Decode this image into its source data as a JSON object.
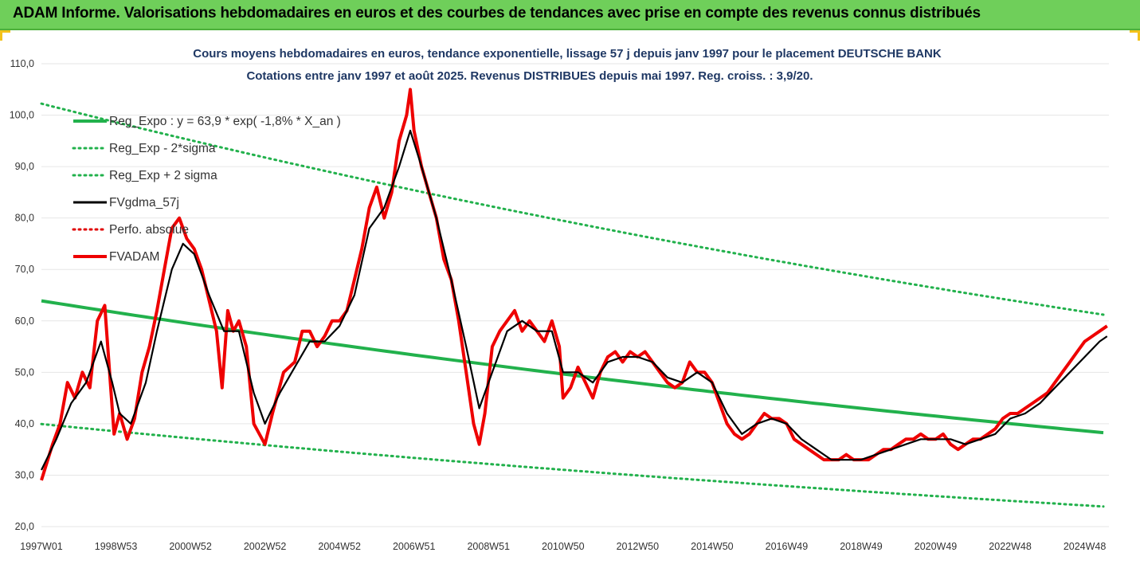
{
  "banner": {
    "title": "ADAM Informe. Valorisations hebdomadaires en euros et des courbes de tendances avec prise en compte des revenus connus distribués"
  },
  "chart_data": {
    "type": "line",
    "title_line1": "Cours moyens hebdomadaires en euros, tendance exponentielle, lissage 57 j depuis janv 1997 pour le placement DEUTSCHE BANK",
    "title_line2": "Cotations entre janv 1997 et août 2025. Revenus DISTRIBUES depuis mai 1997. Reg. croiss. : 3,9/20.",
    "ylim": [
      20,
      110
    ],
    "y_ticks": [
      "20,0",
      "30,0",
      "40,0",
      "50,0",
      "60,0",
      "70,0",
      "80,0",
      "90,0",
      "100,0",
      "110,0"
    ],
    "x_range": [
      1997.0,
      2025.65
    ],
    "x_ticks": [
      {
        "label": "1997W01",
        "year": 1997.0
      },
      {
        "label": "1998W53",
        "year": 1999.0
      },
      {
        "label": "2000W52",
        "year": 2001.0
      },
      {
        "label": "2002W52",
        "year": 2003.0
      },
      {
        "label": "2004W52",
        "year": 2005.0
      },
      {
        "label": "2006W51",
        "year": 2007.0
      },
      {
        "label": "2008W51",
        "year": 2009.0
      },
      {
        "label": "2010W50",
        "year": 2011.0
      },
      {
        "label": "2012W50",
        "year": 2013.0
      },
      {
        "label": "2014W50",
        "year": 2015.0
      },
      {
        "label": "2016W49",
        "year": 2017.0
      },
      {
        "label": "2018W49",
        "year": 2019.0
      },
      {
        "label": "2020W49",
        "year": 2021.0
      },
      {
        "label": "2022W48",
        "year": 2023.0
      },
      {
        "label": "2024W48",
        "year": 2025.0
      }
    ],
    "legend": [
      {
        "label": "Reg_Expo : y = 63,9 * exp( -1,8% *  X_an )",
        "color": "#22b14c",
        "style": "solid",
        "width": 4
      },
      {
        "label": "Reg_Exp - 2*sigma",
        "color": "#22b14c",
        "style": "dotted",
        "width": 3
      },
      {
        "label": "Reg_Exp + 2 sigma",
        "color": "#22b14c",
        "style": "dotted",
        "width": 3
      },
      {
        "label": "FVgdma_57j",
        "color": "#000000",
        "style": "solid",
        "width": 3
      },
      {
        "label": "Perfo. absolue",
        "color": "#e00000",
        "style": "dotted",
        "width": 3
      },
      {
        "label": "FVADAM",
        "color": "#ee0000",
        "style": "solid",
        "width": 4
      }
    ],
    "regression": {
      "a": 63.9,
      "rate": -0.018,
      "lower_factor": 0.625,
      "upper_factor": 1.6,
      "x0": 1997.0
    },
    "series": [
      {
        "name": "FVADAM",
        "color": "#ee0000",
        "points": [
          [
            1997.0,
            29
          ],
          [
            1997.3,
            36
          ],
          [
            1997.5,
            40
          ],
          [
            1997.7,
            48
          ],
          [
            1997.9,
            45
          ],
          [
            1998.1,
            50
          ],
          [
            1998.3,
            47
          ],
          [
            1998.5,
            60
          ],
          [
            1998.7,
            63
          ],
          [
            1998.85,
            48
          ],
          [
            1998.95,
            38
          ],
          [
            1999.1,
            42
          ],
          [
            1999.3,
            37
          ],
          [
            1999.5,
            41
          ],
          [
            1999.7,
            50
          ],
          [
            1999.9,
            55
          ],
          [
            2000.1,
            62
          ],
          [
            2000.3,
            70
          ],
          [
            2000.5,
            78
          ],
          [
            2000.7,
            80
          ],
          [
            2000.9,
            76
          ],
          [
            2001.1,
            74
          ],
          [
            2001.3,
            70
          ],
          [
            2001.5,
            64
          ],
          [
            2001.7,
            58
          ],
          [
            2001.85,
            47
          ],
          [
            2002.0,
            62
          ],
          [
            2002.15,
            58
          ],
          [
            2002.3,
            60
          ],
          [
            2002.5,
            55
          ],
          [
            2002.7,
            40
          ],
          [
            2002.85,
            38
          ],
          [
            2003.0,
            36
          ],
          [
            2003.2,
            42
          ],
          [
            2003.5,
            50
          ],
          [
            2003.8,
            52
          ],
          [
            2004.0,
            58
          ],
          [
            2004.2,
            58
          ],
          [
            2004.4,
            55
          ],
          [
            2004.6,
            57
          ],
          [
            2004.8,
            60
          ],
          [
            2005.0,
            60
          ],
          [
            2005.2,
            62
          ],
          [
            2005.4,
            68
          ],
          [
            2005.6,
            74
          ],
          [
            2005.8,
            82
          ],
          [
            2006.0,
            86
          ],
          [
            2006.2,
            80
          ],
          [
            2006.4,
            85
          ],
          [
            2006.6,
            95
          ],
          [
            2006.8,
            100
          ],
          [
            2006.9,
            105
          ],
          [
            2007.0,
            97
          ],
          [
            2007.2,
            90
          ],
          [
            2007.4,
            85
          ],
          [
            2007.6,
            80
          ],
          [
            2007.8,
            72
          ],
          [
            2008.0,
            68
          ],
          [
            2008.2,
            60
          ],
          [
            2008.4,
            50
          ],
          [
            2008.6,
            40
          ],
          [
            2008.75,
            36
          ],
          [
            2008.9,
            42
          ],
          [
            2009.1,
            55
          ],
          [
            2009.3,
            58
          ],
          [
            2009.5,
            60
          ],
          [
            2009.7,
            62
          ],
          [
            2009.9,
            58
          ],
          [
            2010.1,
            60
          ],
          [
            2010.3,
            58
          ],
          [
            2010.5,
            56
          ],
          [
            2010.7,
            60
          ],
          [
            2010.9,
            55
          ],
          [
            2011.0,
            45
          ],
          [
            2011.2,
            47
          ],
          [
            2011.4,
            51
          ],
          [
            2011.6,
            48
          ],
          [
            2011.8,
            45
          ],
          [
            2012.0,
            50
          ],
          [
            2012.2,
            53
          ],
          [
            2012.4,
            54
          ],
          [
            2012.6,
            52
          ],
          [
            2012.8,
            54
          ],
          [
            2013.0,
            53
          ],
          [
            2013.2,
            54
          ],
          [
            2013.4,
            52
          ],
          [
            2013.6,
            50
          ],
          [
            2013.8,
            48
          ],
          [
            2014.0,
            47
          ],
          [
            2014.2,
            48
          ],
          [
            2014.4,
            52
          ],
          [
            2014.6,
            50
          ],
          [
            2014.8,
            50
          ],
          [
            2015.0,
            48
          ],
          [
            2015.2,
            44
          ],
          [
            2015.4,
            40
          ],
          [
            2015.6,
            38
          ],
          [
            2015.8,
            37
          ],
          [
            2016.0,
            38
          ],
          [
            2016.2,
            40
          ],
          [
            2016.4,
            42
          ],
          [
            2016.6,
            41
          ],
          [
            2016.8,
            41
          ],
          [
            2017.0,
            40
          ],
          [
            2017.2,
            37
          ],
          [
            2017.4,
            36
          ],
          [
            2017.6,
            35
          ],
          [
            2017.8,
            34
          ],
          [
            2018.0,
            33
          ],
          [
            2018.2,
            33
          ],
          [
            2018.4,
            33
          ],
          [
            2018.6,
            34
          ],
          [
            2018.8,
            33
          ],
          [
            2019.0,
            33
          ],
          [
            2019.2,
            33
          ],
          [
            2019.4,
            34
          ],
          [
            2019.6,
            35
          ],
          [
            2019.8,
            35
          ],
          [
            2020.0,
            36
          ],
          [
            2020.2,
            37
          ],
          [
            2020.4,
            37
          ],
          [
            2020.6,
            38
          ],
          [
            2020.8,
            37
          ],
          [
            2021.0,
            37
          ],
          [
            2021.2,
            38
          ],
          [
            2021.4,
            36
          ],
          [
            2021.6,
            35
          ],
          [
            2021.8,
            36
          ],
          [
            2022.0,
            37
          ],
          [
            2022.2,
            37
          ],
          [
            2022.4,
            38
          ],
          [
            2022.6,
            39
          ],
          [
            2022.8,
            41
          ],
          [
            2023.0,
            42
          ],
          [
            2023.2,
            42
          ],
          [
            2023.4,
            43
          ],
          [
            2023.6,
            44
          ],
          [
            2023.8,
            45
          ],
          [
            2024.0,
            46
          ],
          [
            2024.2,
            48
          ],
          [
            2024.4,
            50
          ],
          [
            2024.6,
            52
          ],
          [
            2024.8,
            54
          ],
          [
            2025.0,
            56
          ],
          [
            2025.2,
            57
          ],
          [
            2025.4,
            58
          ],
          [
            2025.6,
            59
          ]
        ]
      },
      {
        "name": "FVgdma_57j",
        "color": "#000000",
        "points": [
          [
            1997.0,
            31
          ],
          [
            1997.4,
            37
          ],
          [
            1997.8,
            44
          ],
          [
            1998.2,
            48
          ],
          [
            1998.6,
            56
          ],
          [
            1998.9,
            48
          ],
          [
            1999.1,
            42
          ],
          [
            1999.4,
            40
          ],
          [
            1999.8,
            48
          ],
          [
            2000.1,
            58
          ],
          [
            2000.5,
            70
          ],
          [
            2000.8,
            75
          ],
          [
            2001.1,
            73
          ],
          [
            2001.5,
            65
          ],
          [
            2001.9,
            58
          ],
          [
            2002.3,
            58
          ],
          [
            2002.7,
            46
          ],
          [
            2003.0,
            40
          ],
          [
            2003.4,
            46
          ],
          [
            2003.8,
            51
          ],
          [
            2004.2,
            56
          ],
          [
            2004.6,
            56
          ],
          [
            2005.0,
            59
          ],
          [
            2005.4,
            65
          ],
          [
            2005.8,
            78
          ],
          [
            2006.2,
            82
          ],
          [
            2006.6,
            90
          ],
          [
            2006.9,
            97
          ],
          [
            2007.2,
            90
          ],
          [
            2007.6,
            80
          ],
          [
            2008.0,
            68
          ],
          [
            2008.4,
            55
          ],
          [
            2008.75,
            43
          ],
          [
            2009.1,
            50
          ],
          [
            2009.5,
            58
          ],
          [
            2009.9,
            60
          ],
          [
            2010.3,
            58
          ],
          [
            2010.7,
            58
          ],
          [
            2011.0,
            50
          ],
          [
            2011.4,
            50
          ],
          [
            2011.8,
            48
          ],
          [
            2012.2,
            52
          ],
          [
            2012.6,
            53
          ],
          [
            2013.0,
            53
          ],
          [
            2013.4,
            52
          ],
          [
            2013.8,
            49
          ],
          [
            2014.2,
            48
          ],
          [
            2014.6,
            50
          ],
          [
            2015.0,
            48
          ],
          [
            2015.4,
            42
          ],
          [
            2015.8,
            38
          ],
          [
            2016.2,
            40
          ],
          [
            2016.6,
            41
          ],
          [
            2017.0,
            40
          ],
          [
            2017.4,
            37
          ],
          [
            2017.8,
            35
          ],
          [
            2018.2,
            33
          ],
          [
            2018.6,
            33
          ],
          [
            2019.0,
            33
          ],
          [
            2019.4,
            34
          ],
          [
            2019.8,
            35
          ],
          [
            2020.2,
            36
          ],
          [
            2020.6,
            37
          ],
          [
            2021.0,
            37
          ],
          [
            2021.4,
            37
          ],
          [
            2021.8,
            36
          ],
          [
            2022.2,
            37
          ],
          [
            2022.6,
            38
          ],
          [
            2023.0,
            41
          ],
          [
            2023.4,
            42
          ],
          [
            2023.8,
            44
          ],
          [
            2024.2,
            47
          ],
          [
            2024.6,
            50
          ],
          [
            2025.0,
            53
          ],
          [
            2025.4,
            56
          ],
          [
            2025.6,
            57
          ]
        ]
      }
    ]
  }
}
